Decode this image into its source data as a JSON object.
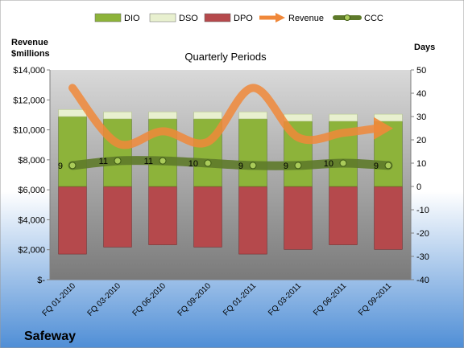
{
  "company": "Safeway",
  "colors": {
    "bg_top": "#ffffff",
    "bg_bottom": "#4f8ed6",
    "plot_top": "#d9d9d9",
    "plot_bottom": "#7a7a7a",
    "dio": "#8db33a",
    "dso": "#e8f0cf",
    "dpo": "#b5494c",
    "revenue": "#f0883a",
    "ccc": "#5e7a2a"
  },
  "chart_data": {
    "type": "bar",
    "title": "Quarterly Periods",
    "y_left_label_line1": "Revenue",
    "y_left_label_line2": "$millions",
    "y_right_label": "Days",
    "categories": [
      "FQ 01-2010",
      "FQ 03-2010",
      "FQ 06-2010",
      "FQ 09-2010",
      "FQ 01-2011",
      "FQ 03-2011",
      "FQ 06-2011",
      "FQ 09-2011"
    ],
    "series": [
      {
        "name": "DIO",
        "type": "stacked-bar",
        "axis": "right",
        "values": [
          30,
          29,
          29,
          29,
          29,
          28,
          28,
          28
        ]
      },
      {
        "name": "DSO",
        "type": "stacked-bar",
        "axis": "right",
        "values": [
          3,
          3,
          3,
          3,
          3,
          3,
          3,
          3
        ]
      },
      {
        "name": "DPO",
        "type": "stacked-bar",
        "axis": "right",
        "values": [
          -29,
          -26,
          -25,
          -26,
          -29,
          -27,
          -25,
          -27
        ]
      },
      {
        "name": "Revenue",
        "type": "line",
        "axis": "left",
        "values": [
          12800,
          9100,
          9900,
          9200,
          12800,
          9500,
          9800,
          10100
        ]
      },
      {
        "name": "CCC",
        "type": "line",
        "axis": "right",
        "values": [
          9,
          11,
          11,
          10,
          9,
          9,
          10,
          9
        ]
      }
    ],
    "ccc_labels": [
      "9",
      "11",
      "11",
      "10",
      "9",
      "9",
      "10",
      "9"
    ],
    "y_left_ticks": [
      "$-",
      "$2,000",
      "$4,000",
      "$6,000",
      "$8,000",
      "$10,000",
      "$12,000",
      "$14,000"
    ],
    "y_right_ticks": [
      "-40",
      "-30",
      "-20",
      "-10",
      "0",
      "10",
      "20",
      "30",
      "40",
      "50"
    ],
    "ylim_left": [
      0,
      14000
    ],
    "ylim_right": [
      -40,
      50
    ],
    "legend_position": "top",
    "grid": false
  }
}
